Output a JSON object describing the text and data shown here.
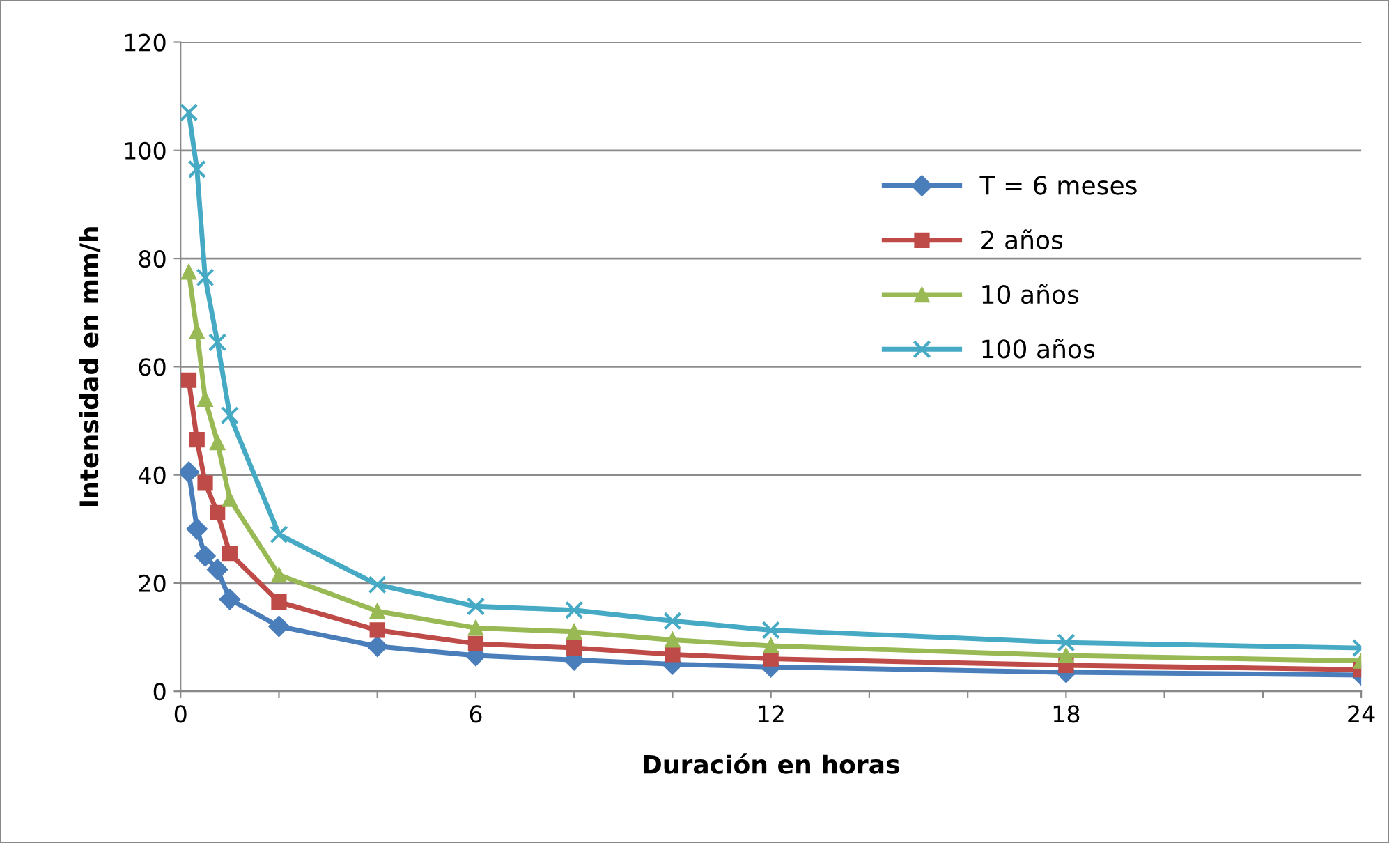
{
  "chart_data": {
    "type": "line",
    "xlabel": "Duración en horas",
    "ylabel": "Intensidad en mm/h",
    "x": [
      0.167,
      0.333,
      0.5,
      0.75,
      1,
      2,
      4,
      6,
      8,
      10,
      12,
      18,
      24
    ],
    "series": [
      {
        "name": "T = 6 meses",
        "color": "#4a7ebb",
        "marker": "diamond",
        "values": [
          40.5,
          30,
          25,
          22.5,
          17,
          12,
          8.3,
          6.6,
          5.8,
          5,
          4.5,
          3.5,
          3
        ]
      },
      {
        "name": "2 años",
        "color": "#be4b48",
        "marker": "square",
        "values": [
          57.5,
          46.5,
          38.5,
          33,
          25.5,
          16.5,
          11.3,
          8.8,
          8,
          6.8,
          6,
          4.8,
          4
        ]
      },
      {
        "name": "10 años",
        "color": "#98b954",
        "marker": "triangle",
        "values": [
          77.5,
          66.5,
          54,
          46,
          35.5,
          21.5,
          14.8,
          11.7,
          11,
          9.5,
          8.4,
          6.6,
          5.6
        ]
      },
      {
        "name": "100 años",
        "color": "#46aac5",
        "marker": "cross",
        "values": [
          107,
          96.5,
          76.5,
          64.5,
          51,
          29,
          19.7,
          15.7,
          15,
          13,
          11.3,
          9,
          8
        ]
      }
    ],
    "xlim": [
      0,
      24
    ],
    "xticks": [
      0,
      {
        "value": 2,
        "label": null
      },
      {
        "value": 4,
        "label": null
      },
      6,
      {
        "value": 8,
        "label": null
      },
      {
        "value": 10,
        "label": null
      },
      12,
      {
        "value": 14,
        "label": null
      },
      {
        "value": 16,
        "label": null
      },
      18,
      {
        "value": 20,
        "label": null
      },
      {
        "value": 22,
        "label": null
      },
      24
    ],
    "ylim": [
      0,
      120
    ],
    "yticks": [
      0,
      20,
      40,
      60,
      80,
      100,
      120
    ],
    "grid": "y",
    "legend": "right",
    "line_style": "solid"
  }
}
